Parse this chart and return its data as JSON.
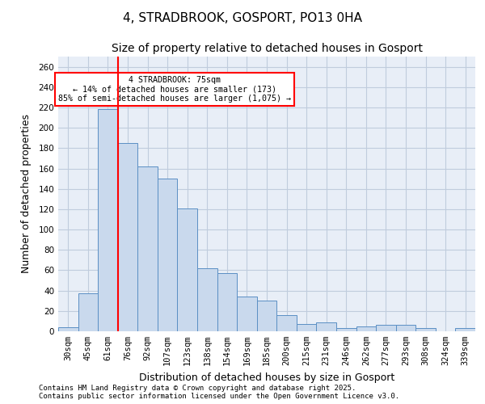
{
  "title1": "4, STRADBROOK, GOSPORT, PO13 0HA",
  "title2": "Size of property relative to detached houses in Gosport",
  "xlabel": "Distribution of detached houses by size in Gosport",
  "ylabel": "Number of detached properties",
  "categories": [
    "30sqm",
    "45sqm",
    "61sqm",
    "76sqm",
    "92sqm",
    "107sqm",
    "123sqm",
    "138sqm",
    "154sqm",
    "169sqm",
    "185sqm",
    "200sqm",
    "215sqm",
    "231sqm",
    "246sqm",
    "262sqm",
    "277sqm",
    "293sqm",
    "308sqm",
    "324sqm",
    "339sqm"
  ],
  "values": [
    4,
    37,
    218,
    185,
    162,
    150,
    121,
    62,
    57,
    34,
    30,
    16,
    7,
    9,
    3,
    5,
    6,
    6,
    3,
    0,
    3
  ],
  "bar_color": "#c9d9ed",
  "bar_edge_color": "#5b8fc4",
  "red_line_x": 2,
  "annotation_text": "4 STRADBROOK: 75sqm\n← 14% of detached houses are smaller (173)\n85% of semi-detached houses are larger (1,075) →",
  "annotation_box_color": "white",
  "annotation_box_edge": "red",
  "ylim": [
    0,
    270
  ],
  "yticks": [
    0,
    20,
    40,
    60,
    80,
    100,
    120,
    140,
    160,
    180,
    200,
    220,
    240,
    260
  ],
  "grid_color": "#c0ccdd",
  "bg_color": "#e8eef7",
  "footer": "Contains HM Land Registry data © Crown copyright and database right 2025.\nContains public sector information licensed under the Open Government Licence v3.0.",
  "title1_fontsize": 11,
  "title2_fontsize": 10,
  "xlabel_fontsize": 9,
  "ylabel_fontsize": 9,
  "tick_fontsize": 7.5,
  "footer_fontsize": 6.5
}
